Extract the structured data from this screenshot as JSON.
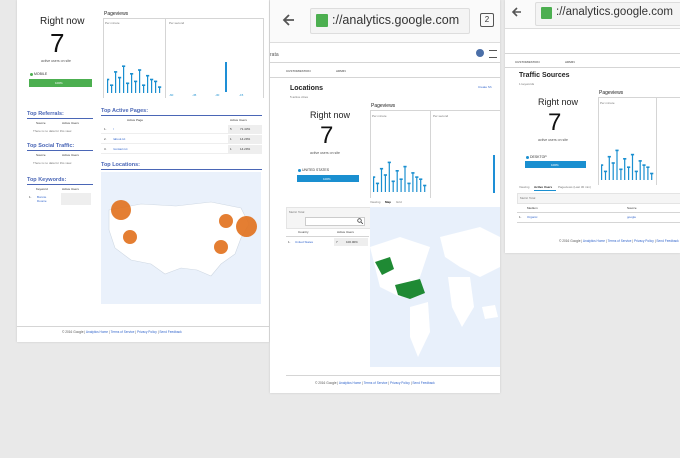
{
  "panel1": {
    "right_now": "Right now",
    "active_count": "7",
    "active_label": "active users on site",
    "device_label": "MOBILE",
    "device_pct": "100%",
    "pageviews": "Pageviews",
    "per_minute": "Per minute",
    "per_second": "Per second",
    "top_referrals": "Top Referrals:",
    "ref_cols": [
      "Source",
      "Active Users"
    ],
    "no_data": "There is no data for this view.",
    "top_social": "Top Social Traffic:",
    "social_cols": [
      "Source",
      "Active Users"
    ],
    "top_keywords": "Top Keywords:",
    "kw_cols": [
      "Keyword",
      "Active Users"
    ],
    "kw_row": {
      "idx": "1.",
      "kw": "Bonnie Doonie"
    },
    "top_pages": "Top Active Pages:",
    "page_cols": [
      "Active Page",
      "Active Users"
    ],
    "pages": [
      {
        "idx": "1.",
        "page": "/",
        "users": "5",
        "pct": "71.43%"
      },
      {
        "idx": "2.",
        "page": "/about.txt",
        "users": "1",
        "pct": "14.29%"
      },
      {
        "idx": "3.",
        "page": "/contact.txt",
        "users": "1",
        "pct": "14.29%"
      }
    ],
    "top_locations": "Top Locations:",
    "footer": {
      "copy": "© 2016 Google |",
      "home": "Analytics Home",
      "tos": "Terms of Service",
      "privacy": "Privacy Policy",
      "feedback": "Send Feedback"
    },
    "tick_minus60": "-60",
    "tick_minus45": "-45",
    "tick_minus30": "-30",
    "tick_minus15": "-15"
  },
  "panel2": {
    "url": "://analytics.google.com",
    "tab_count": "2",
    "account": "rata",
    "tabs": [
      "CUSTOMIZATION",
      "ADMIN"
    ],
    "title": "Locations",
    "subtitle": "5 active cities",
    "create_shortcut": "Create Sh",
    "right_now": "Right now",
    "active_count": "7",
    "active_label": "active users on site",
    "device_label": "UNITED STATES",
    "device_pct": "100%",
    "pageviews": "Pageviews",
    "per_minute": "Per minute",
    "per_second": "Per second",
    "view_tabs": [
      "Viewing",
      "Map",
      "Grid"
    ],
    "metric_label": "Metric Total",
    "table_cols": [
      "Country",
      "Active Users"
    ],
    "table_row": {
      "idx": "1.",
      "country": "United States",
      "users": "7",
      "pct": "100.00%"
    },
    "footer": {
      "copy": "© 2016 Google |",
      "home": "Analytics Home",
      "tos": "Terms of Service",
      "privacy": "Privacy Policy",
      "feedback": "Send Feedback"
    }
  },
  "panel3": {
    "url": "://analytics.google.com",
    "tabs": [
      "CUSTOMIZATION",
      "ADMIN"
    ],
    "title": "Traffic Sources",
    "subtitle": "1 keywords",
    "right_now": "Right now",
    "active_count": "7",
    "active_label": "active users on site",
    "device_label": "DESKTOP",
    "device_pct": "100%",
    "pageviews": "Pageviews",
    "per_minute": "Per minute",
    "view_tabs": [
      "Viewing",
      "Active Users",
      "Pageviews (Last 30 min)"
    ],
    "metric_label": "Metric Total",
    "table_cols": [
      "Medium",
      "Source"
    ],
    "table_row": {
      "idx": "1.",
      "medium": "Organic",
      "source": "google"
    },
    "footer": {
      "copy": "© 2016 Google |",
      "home": "Analytics Home",
      "tos": "Terms of Service",
      "privacy": "Privacy Policy",
      "feedback": "Send Feedback"
    }
  },
  "colors": {
    "accent": "#4a66b6",
    "green": "#4caf50",
    "blue": "#1a8fd0",
    "orange": "#e1701c",
    "map_water": "#e8f0fb",
    "map_land": "#ffffff",
    "map_us": "#1f8a34"
  }
}
